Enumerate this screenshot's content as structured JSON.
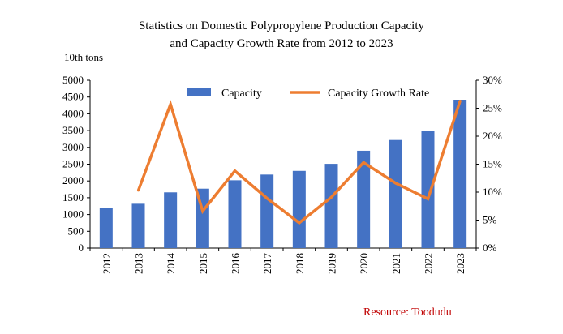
{
  "chart_data": {
    "type": "bar+line",
    "title_line1": "Statistics on Domestic Polypropylene Production Capacity",
    "title_line2": "and Capacity Growth Rate from 2012 to 2023",
    "y_left_unit": "10th tons",
    "source": "Resource: Toodudu",
    "categories": [
      "2012",
      "2013",
      "2014",
      "2015",
      "2016",
      "2017",
      "2018",
      "2019",
      "2020",
      "2021",
      "2022",
      "2023"
    ],
    "series": [
      {
        "name": "Capacity",
        "type": "bar",
        "axis": "left",
        "color": "#4472c4",
        "values": [
          1200,
          1320,
          1660,
          1770,
          2020,
          2190,
          2300,
          2510,
          2900,
          3220,
          3500,
          4420
        ]
      },
      {
        "name": "Capacity Growth Rate",
        "type": "line",
        "axis": "right",
        "color": "#ed7d31",
        "values": [
          null,
          10.3,
          25.7,
          6.6,
          13.8,
          8.9,
          4.5,
          9.1,
          15.3,
          11.6,
          8.8,
          26.3
        ]
      }
    ],
    "y_left": {
      "min": 0,
      "max": 5000,
      "step": 500,
      "ticks": [
        "0",
        "500",
        "1000",
        "1500",
        "2000",
        "2500",
        "3000",
        "3500",
        "4000",
        "4500",
        "5000"
      ]
    },
    "y_right": {
      "min": 0,
      "max": 30,
      "step": 5,
      "ticks": [
        "0%",
        "5%",
        "10%",
        "15%",
        "20%",
        "25%",
        "30%"
      ]
    },
    "legend_position": "top-center",
    "grid": false
  }
}
